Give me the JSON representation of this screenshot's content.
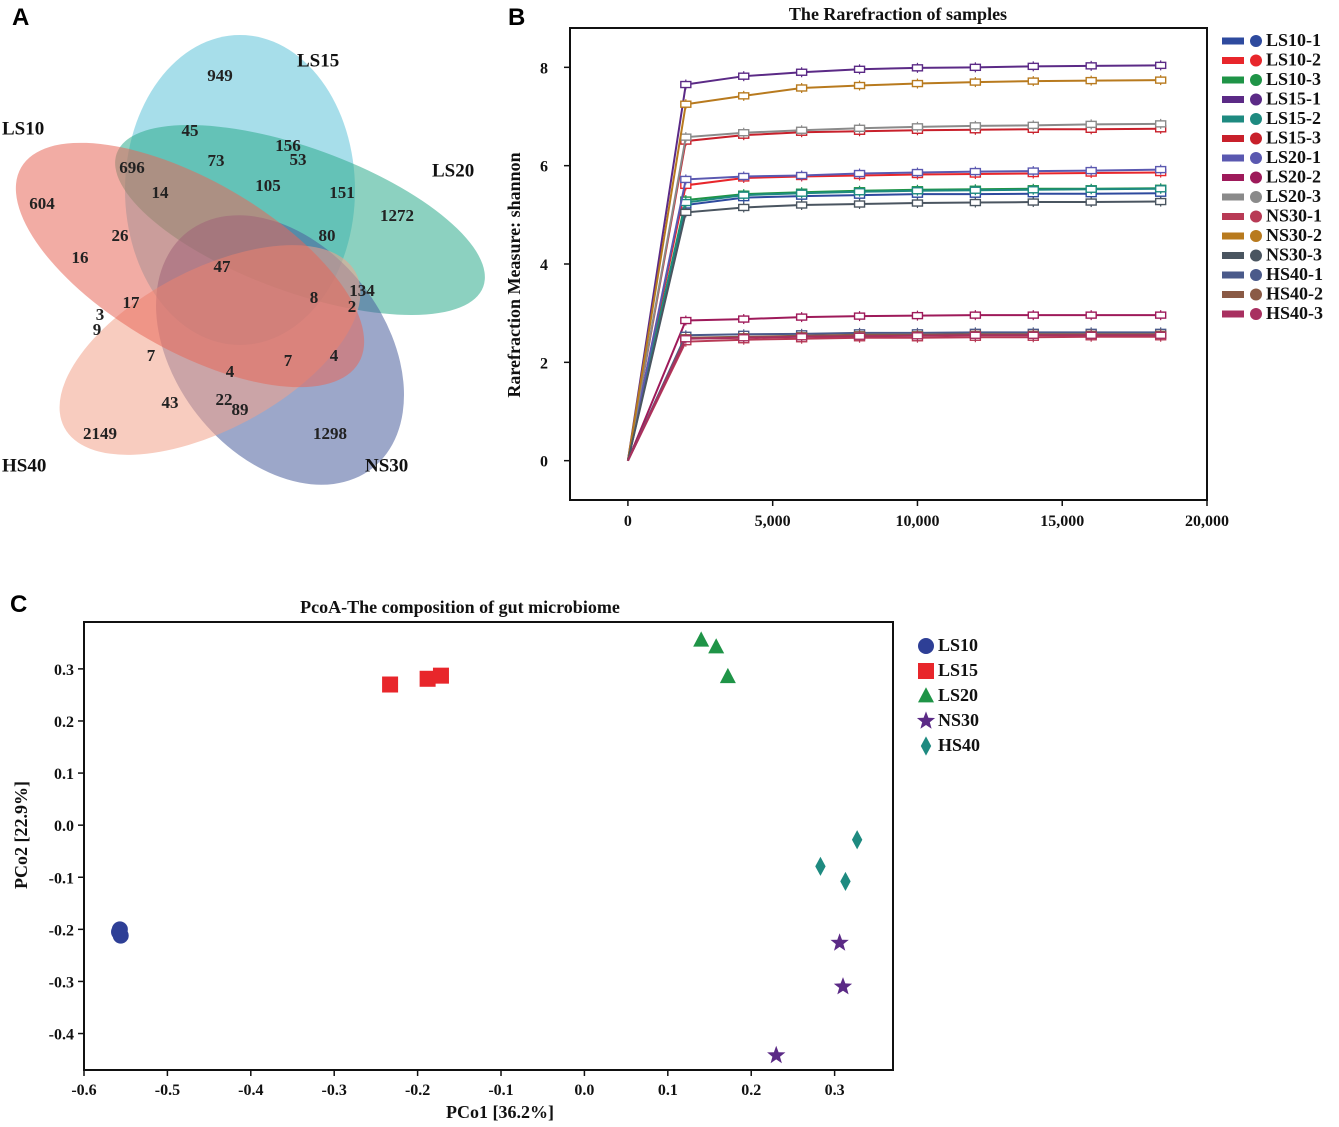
{
  "panels": {
    "a": "A",
    "b": "B",
    "c": "C"
  },
  "venn": {
    "sets": [
      {
        "name": "LS15",
        "color": "#5ec2d8"
      },
      {
        "name": "LS20",
        "color": "#2eab8c"
      },
      {
        "name": "NS30",
        "color": "#4a5e9c"
      },
      {
        "name": "HS40",
        "color": "#f2a38a"
      },
      {
        "name": "LS10",
        "color": "#e8675a"
      }
    ],
    "counts": [
      "949",
      "1272",
      "1298",
      "2149",
      "604",
      "45",
      "156",
      "53",
      "696",
      "73",
      "14",
      "105",
      "151",
      "80",
      "26",
      "16",
      "47",
      "134",
      "8",
      "2",
      "17",
      "3",
      "9",
      "7",
      "4",
      "7",
      "4",
      "43",
      "22",
      "89"
    ]
  },
  "colors": {
    "LS10-1": "#2e4a9e",
    "LS10-2": "#e8262b",
    "LS10-3": "#1f9447",
    "LS15-1": "#5b2a86",
    "LS15-2": "#1e8a80",
    "LS15-3": "#c8202b",
    "LS20-1": "#5a58b0",
    "LS20-2": "#9e1a5a",
    "LS20-3": "#8a8a8a",
    "NS30-1": "#b83a55",
    "NS30-2": "#b87a1e",
    "NS30-3": "#4a5560",
    "HS40-1": "#4a5a8a",
    "HS40-2": "#8a5a45",
    "HS40-3": "#a83060"
  },
  "chart_data": [
    {
      "type": "line",
      "title": "The Rarefraction of samples",
      "xlabel": "",
      "ylabel": "Rarefraction Measure: shannon",
      "xlim": [
        -2000,
        20000
      ],
      "ylim": [
        -0.8,
        8.8
      ],
      "xticks": [
        "0",
        "5,000",
        "10,000",
        "15,000",
        "20,000"
      ],
      "xtick_values": [
        0,
        5000,
        10000,
        15000,
        20000
      ],
      "yticks": [
        "0",
        "2",
        "4",
        "6",
        "8"
      ],
      "ytick_values": [
        0,
        2,
        4,
        6,
        8
      ],
      "x": [
        0,
        2000,
        4000,
        6000,
        8000,
        10000,
        12000,
        14000,
        16000,
        18400
      ],
      "series": [
        {
          "name": "LS10-1",
          "values": [
            0,
            5.2,
            5.35,
            5.38,
            5.4,
            5.42,
            5.42,
            5.43,
            5.43,
            5.44
          ]
        },
        {
          "name": "LS10-2",
          "values": [
            0,
            5.6,
            5.75,
            5.78,
            5.8,
            5.82,
            5.83,
            5.84,
            5.85,
            5.86
          ]
        },
        {
          "name": "LS10-3",
          "values": [
            0,
            5.3,
            5.42,
            5.46,
            5.49,
            5.51,
            5.52,
            5.53,
            5.53,
            5.54
          ]
        },
        {
          "name": "LS15-1",
          "values": [
            0,
            7.65,
            7.82,
            7.9,
            7.96,
            7.99,
            8.0,
            8.02,
            8.03,
            8.04
          ]
        },
        {
          "name": "LS15-2",
          "values": [
            0,
            5.25,
            5.4,
            5.44,
            5.47,
            5.49,
            5.5,
            5.51,
            5.52,
            5.53
          ]
        },
        {
          "name": "LS15-3",
          "values": [
            0,
            6.5,
            6.62,
            6.68,
            6.7,
            6.72,
            6.73,
            6.74,
            6.74,
            6.75
          ]
        },
        {
          "name": "LS20-1",
          "values": [
            0,
            5.72,
            5.78,
            5.8,
            5.84,
            5.86,
            5.88,
            5.89,
            5.9,
            5.92
          ]
        },
        {
          "name": "LS20-2",
          "values": [
            0,
            2.85,
            2.88,
            2.92,
            2.94,
            2.95,
            2.96,
            2.96,
            2.96,
            2.96
          ]
        },
        {
          "name": "LS20-3",
          "values": [
            0,
            6.58,
            6.67,
            6.72,
            6.76,
            6.79,
            6.81,
            6.82,
            6.84,
            6.85
          ]
        },
        {
          "name": "NS30-1",
          "values": [
            0,
            2.42,
            2.46,
            2.48,
            2.5,
            2.5,
            2.51,
            2.51,
            2.52,
            2.52
          ]
        },
        {
          "name": "NS30-2",
          "values": [
            0,
            7.25,
            7.42,
            7.58,
            7.63,
            7.67,
            7.7,
            7.72,
            7.73,
            7.74
          ]
        },
        {
          "name": "NS30-3",
          "values": [
            0,
            5.05,
            5.15,
            5.2,
            5.22,
            5.24,
            5.25,
            5.26,
            5.26,
            5.27
          ]
        },
        {
          "name": "HS40-1",
          "values": [
            0,
            2.55,
            2.57,
            2.58,
            2.6,
            2.6,
            2.61,
            2.61,
            2.61,
            2.61
          ]
        },
        {
          "name": "HS40-2",
          "values": [
            0,
            2.5,
            2.52,
            2.54,
            2.56,
            2.56,
            2.57,
            2.57,
            2.57,
            2.57
          ]
        },
        {
          "name": "HS40-3",
          "values": [
            0,
            2.48,
            2.5,
            2.52,
            2.53,
            2.54,
            2.55,
            2.55,
            2.55,
            2.55
          ]
        }
      ]
    },
    {
      "type": "scatter",
      "title": "PcoA-The composition of gut microbiome",
      "xlabel": "PCo1 [36.2%]",
      "ylabel": "PCo2 [22.9%]",
      "xlim": [
        -0.6,
        0.37
      ],
      "ylim": [
        -0.47,
        0.39
      ],
      "xticks": [
        "-0.6",
        "-0.5",
        "-0.4",
        "-0.3",
        "-0.2",
        "-0.1",
        "0.0",
        "0.1",
        "0.2",
        "0.3"
      ],
      "xtick_values": [
        -0.6,
        -0.5,
        -0.4,
        -0.3,
        -0.2,
        -0.1,
        0.0,
        0.1,
        0.2,
        0.3
      ],
      "yticks": [
        "0.3",
        "0.2",
        "0.1",
        "0.0",
        "-0.1",
        "-0.2",
        "-0.3",
        "-0.4"
      ],
      "ytick_values": [
        0.3,
        0.2,
        0.1,
        0.0,
        -0.1,
        -0.2,
        -0.3,
        -0.4
      ],
      "series": [
        {
          "name": "LS10",
          "marker": "circle",
          "color": "#2e3f96",
          "points": [
            [
              -0.557,
              -0.2
            ],
            [
              -0.556,
              -0.212
            ],
            [
              -0.558,
              -0.205
            ]
          ]
        },
        {
          "name": "LS15",
          "marker": "square",
          "color": "#e8262b",
          "points": [
            [
              -0.233,
              0.27
            ],
            [
              -0.188,
              0.281
            ],
            [
              -0.172,
              0.287
            ]
          ]
        },
        {
          "name": "LS20",
          "marker": "triangle",
          "color": "#1f9447",
          "points": [
            [
              0.14,
              0.355
            ],
            [
              0.158,
              0.342
            ],
            [
              0.172,
              0.285
            ]
          ]
        },
        {
          "name": "NS30",
          "marker": "star",
          "color": "#5b2a86",
          "points": [
            [
              0.306,
              -0.226
            ],
            [
              0.31,
              -0.31
            ],
            [
              0.23,
              -0.442
            ]
          ]
        },
        {
          "name": "HS40",
          "marker": "diamond",
          "color": "#1e8a80",
          "points": [
            [
              0.327,
              -0.028
            ],
            [
              0.283,
              -0.079
            ],
            [
              0.313,
              -0.108
            ]
          ]
        }
      ]
    }
  ]
}
